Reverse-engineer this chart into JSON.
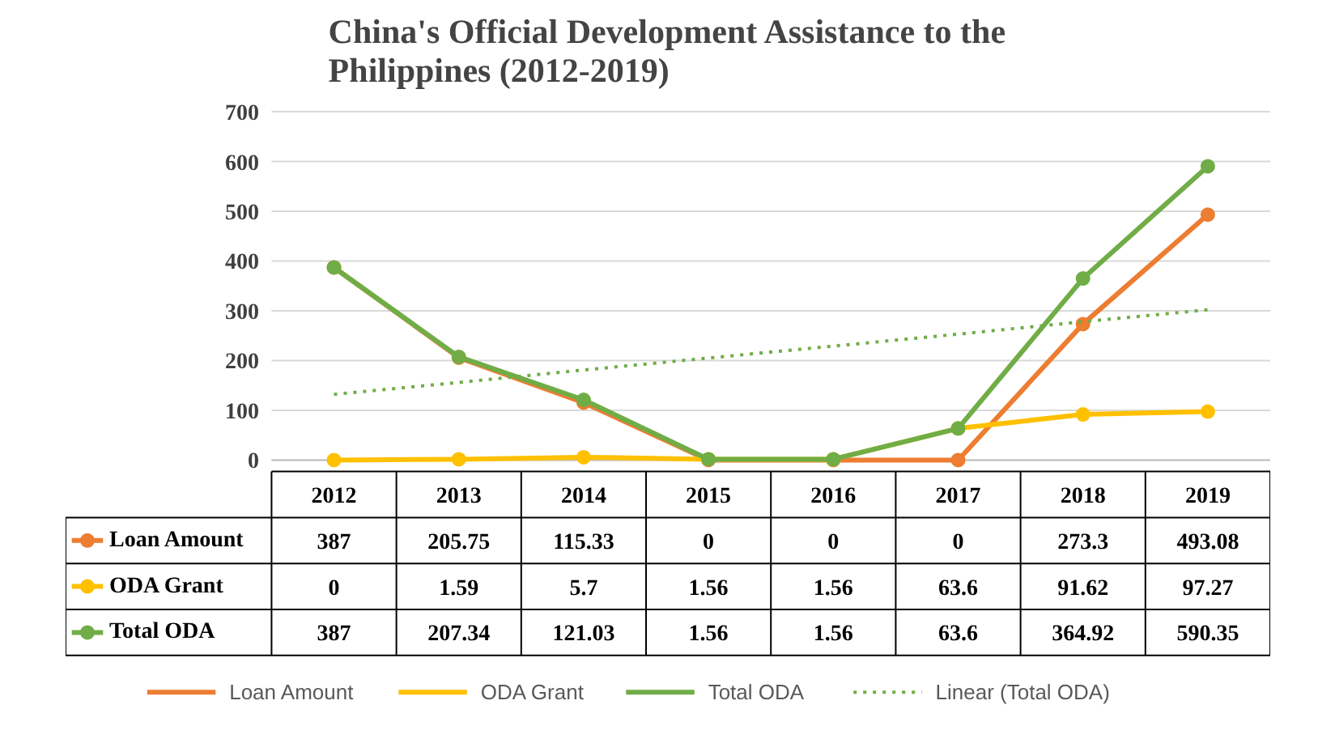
{
  "chart_data": {
    "type": "line",
    "title": "China's Official Development Assistance to the\nPhilippines (2012-2019)",
    "categories": [
      "2012",
      "2013",
      "2014",
      "2015",
      "2016",
      "2017",
      "2018",
      "2019"
    ],
    "series": [
      {
        "name": "Loan Amount",
        "color": "#ed7d31",
        "values": [
          387,
          205.75,
          115.33,
          0,
          0,
          0,
          273.3,
          493.08
        ]
      },
      {
        "name": "ODA Grant",
        "color": "#ffc000",
        "values": [
          0,
          1.59,
          5.7,
          1.56,
          1.56,
          63.6,
          91.62,
          97.27
        ]
      },
      {
        "name": "Total ODA",
        "color": "#70ad47",
        "values": [
          387,
          207.34,
          121.03,
          1.56,
          1.56,
          63.6,
          364.92,
          590.35
        ]
      },
      {
        "name": "Linear (Total ODA)",
        "type": "line",
        "color": "#70ad47",
        "values": [
          132,
          156,
          181,
          205,
          229,
          253,
          278,
          302
        ],
        "line_style": "dotted",
        "marker": "none",
        "data_labels": false
      }
    ],
    "ylim": [
      0,
      700
    ],
    "yticks": [
      0,
      100,
      200,
      300,
      400,
      500,
      600,
      700
    ],
    "grid": "y",
    "legend": "bottom",
    "marker": "circle",
    "line_style": "solid",
    "data_labels": true
  }
}
